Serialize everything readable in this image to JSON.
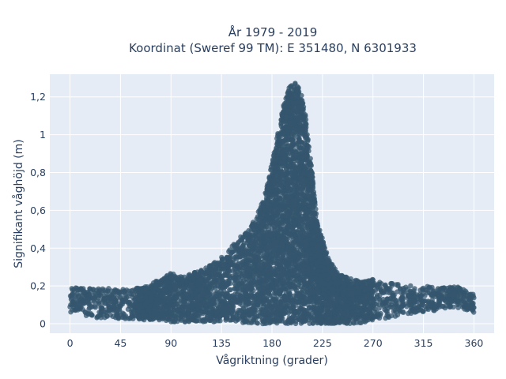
{
  "chart_data": {
    "type": "scatter",
    "title_lines": [
      "År 1979 - 2019",
      "Koordinat (Sweref 99 TM): E 351480, N 6301933"
    ],
    "xlabel": "Vågriktning (grader)",
    "ylabel": "Signifikant våghöjd (m)",
    "xlim": [
      -18,
      378
    ],
    "ylim": [
      -0.05,
      1.32
    ],
    "x_ticks": [
      0,
      45,
      90,
      135,
      180,
      225,
      270,
      315,
      360
    ],
    "x_tick_labels": [
      "0",
      "45",
      "90",
      "135",
      "180",
      "225",
      "270",
      "315",
      "360"
    ],
    "y_ticks": [
      0,
      0.2,
      0.4,
      0.6,
      0.8,
      1.0,
      1.2
    ],
    "y_tick_labels": [
      "0",
      "0,2",
      "0,4",
      "0,6",
      "0,8",
      "1",
      "1,2"
    ],
    "grid": true,
    "colors": {
      "marker": "#34566e",
      "plot_bg": "#e5ecf6",
      "grid": "#ffffff",
      "text": "#2a3f5f"
    },
    "envelope": {
      "x": [
        0,
        10,
        20,
        30,
        45,
        60,
        70,
        80,
        90,
        100,
        110,
        120,
        130,
        140,
        150,
        160,
        165,
        170,
        175,
        180,
        185,
        190,
        195,
        200,
        205,
        210,
        215,
        220,
        225,
        230,
        240,
        250,
        260,
        270,
        280,
        290,
        300,
        310,
        320,
        330,
        340,
        350,
        360
      ],
      "y_max": [
        0.19,
        0.19,
        0.19,
        0.19,
        0.18,
        0.19,
        0.2,
        0.24,
        0.27,
        0.25,
        0.27,
        0.29,
        0.33,
        0.38,
        0.45,
        0.5,
        0.56,
        0.62,
        0.72,
        0.85,
        1.0,
        1.15,
        1.25,
        1.28,
        1.25,
        1.1,
        0.85,
        0.55,
        0.45,
        0.35,
        0.26,
        0.24,
        0.22,
        0.24,
        0.22,
        0.21,
        0.21,
        0.2,
        0.2,
        0.19,
        0.2,
        0.19,
        0.16
      ],
      "y_min": [
        0.05,
        0.05,
        0.03,
        0.03,
        0.02,
        0.02,
        0.02,
        0.02,
        0.01,
        0.01,
        0.01,
        0.01,
        0.01,
        0.01,
        0.01,
        0.0,
        0.0,
        0.0,
        0.0,
        0.0,
        0.0,
        0.0,
        0.0,
        0.0,
        0.0,
        0.0,
        0.0,
        0.0,
        0.0,
        0.0,
        0.0,
        0.0,
        0.0,
        0.02,
        0.02,
        0.03,
        0.05,
        0.06,
        0.06,
        0.08,
        0.08,
        0.08,
        0.06
      ]
    }
  }
}
